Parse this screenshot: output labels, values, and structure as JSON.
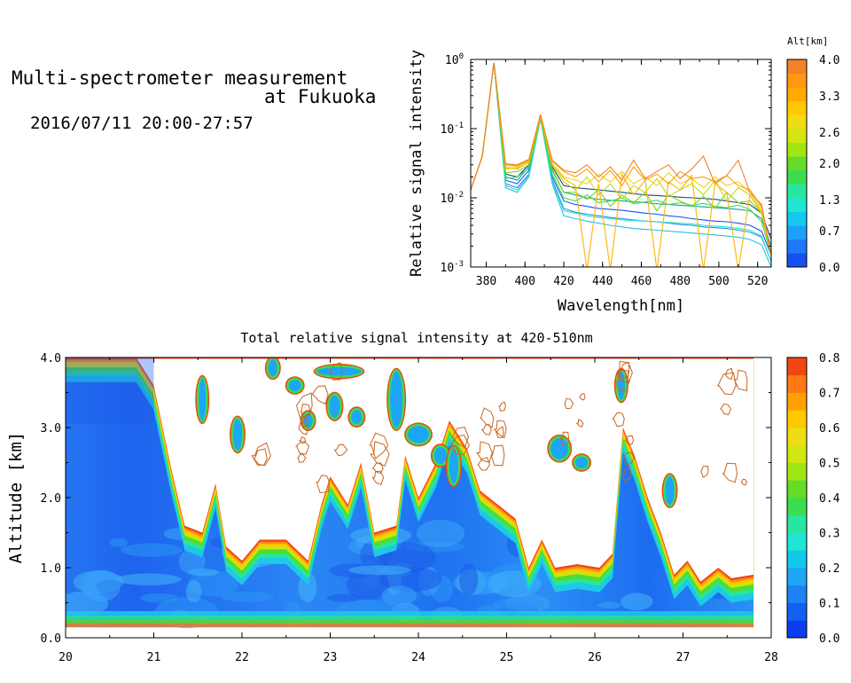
{
  "header": {
    "title_line1": "Multi-spectrometer measurement",
    "title_line2": "at Fukuoka",
    "datetime": "2016/07/11 20:00-27:57"
  },
  "chart_data": [
    {
      "type": "line",
      "ylabel": "Relative signal intensity",
      "xlabel": "Wavelength[nm]",
      "xlim": [
        372,
        527
      ],
      "ylim": [
        0.001,
        1
      ],
      "yscale": "log",
      "x_ticks": [
        380,
        400,
        420,
        440,
        460,
        480,
        500,
        520
      ],
      "y_ticks": [
        {
          "value": 1,
          "mantissa": "10",
          "exp": "0"
        },
        {
          "value": 0.1,
          "mantissa": "10",
          "exp": "-1"
        },
        {
          "value": 0.01,
          "mantissa": "10",
          "exp": "-2"
        },
        {
          "value": 0.001,
          "mantissa": "10",
          "exp": "-3"
        }
      ],
      "x": [
        372,
        378,
        384,
        390,
        396,
        402,
        408,
        414,
        420,
        426,
        432,
        438,
        444,
        450,
        456,
        462,
        468,
        474,
        480,
        486,
        492,
        498,
        504,
        510,
        516,
        522,
        527
      ],
      "series": [
        {
          "alt": 0.0,
          "color": "#1451ff",
          "values": [
            0.013,
            0.04,
            0.9,
            0.018,
            0.016,
            0.025,
            0.15,
            0.02,
            0.009,
            0.008,
            0.0075,
            0.007,
            0.0068,
            0.0066,
            0.0063,
            0.006,
            0.0058,
            0.0055,
            0.0053,
            0.005,
            0.0048,
            0.0046,
            0.0045,
            0.0043,
            0.004,
            0.0033,
            0.0015
          ]
        },
        {
          "alt": 0.35,
          "color": "#1e8cf0",
          "values": [
            0.013,
            0.04,
            0.9,
            0.016,
            0.014,
            0.022,
            0.14,
            0.018,
            0.007,
            0.0062,
            0.0058,
            0.0055,
            0.0052,
            0.005,
            0.0048,
            0.0046,
            0.0045,
            0.0043,
            0.0041,
            0.004,
            0.0038,
            0.0037,
            0.0036,
            0.0034,
            0.0032,
            0.0027,
            0.0012
          ]
        },
        {
          "alt": 0.7,
          "color": "#22c2e6",
          "values": [
            0.013,
            0.04,
            0.9,
            0.014,
            0.012,
            0.02,
            0.14,
            0.016,
            0.0055,
            0.005,
            0.0046,
            0.0043,
            0.004,
            0.0038,
            0.0036,
            0.0035,
            0.0034,
            0.0033,
            0.0032,
            0.0031,
            0.003,
            0.0029,
            0.0028,
            0.0027,
            0.0025,
            0.0021,
            0.001
          ]
        },
        {
          "alt": 1.0,
          "color": "#28e2c8",
          "values": [
            0.013,
            0.04,
            0.9,
            0.015,
            0.013,
            0.021,
            0.14,
            0.017,
            0.0065,
            0.006,
            0.0055,
            0.0052,
            0.005,
            0.0048,
            0.0047,
            0.0046,
            0.0045,
            0.0044,
            0.0043,
            0.0042,
            0.004,
            0.0039,
            0.0038,
            0.0036,
            0.0034,
            0.0028,
            0.0012
          ]
        },
        {
          "alt": 1.3,
          "color": "#14a0aa",
          "values": [
            0.013,
            0.04,
            0.9,
            0.02,
            0.018,
            0.028,
            0.15,
            0.025,
            0.012,
            0.011,
            0.01,
            0.0095,
            0.0092,
            0.009,
            0.0088,
            0.0085,
            0.0082,
            0.008,
            0.0078,
            0.0076,
            0.0074,
            0.0072,
            0.007,
            0.0068,
            0.0065,
            0.005,
            0.002
          ]
        },
        {
          "alt": 1.65,
          "color": "#1a4a8c",
          "values": [
            0.013,
            0.04,
            0.9,
            0.022,
            0.02,
            0.03,
            0.16,
            0.028,
            0.015,
            0.014,
            0.0135,
            0.013,
            0.0125,
            0.012,
            0.0115,
            0.011,
            0.0108,
            0.0105,
            0.0102,
            0.01,
            0.0098,
            0.0095,
            0.009,
            0.0085,
            0.008,
            0.006,
            0.0025
          ]
        },
        {
          "alt": 2.0,
          "color": "#3cdc50",
          "values": [
            0.013,
            0.04,
            0.9,
            0.019,
            0.02,
            0.027,
            0.14,
            0.022,
            0.01,
            0.009,
            0.011,
            0.0085,
            0.009,
            0.01,
            0.0082,
            0.0087,
            0.0092,
            0.008,
            0.0085,
            0.0078,
            0.0083,
            0.0075,
            0.0072,
            0.0078,
            0.0068,
            0.0045,
            0.0015
          ]
        },
        {
          "alt": 2.3,
          "color": "#7ad21e",
          "values": [
            0.013,
            0.04,
            0.9,
            0.023,
            0.024,
            0.03,
            0.15,
            0.026,
            0.012,
            0.012,
            0.0095,
            0.013,
            0.0075,
            0.011,
            0.0085,
            0.012,
            0.0065,
            0.011,
            0.009,
            0.0075,
            0.0105,
            0.007,
            0.012,
            0.0085,
            0.009,
            0.006,
            0.0015
          ]
        },
        {
          "alt": 2.6,
          "color": "#bedc14",
          "values": [
            0.013,
            0.04,
            0.9,
            0.026,
            0.027,
            0.032,
            0.15,
            0.03,
            0.017,
            0.013,
            0.02,
            0.011,
            0.016,
            0.0095,
            0.015,
            0.012,
            0.019,
            0.0105,
            0.013,
            0.016,
            0.011,
            0.018,
            0.009,
            0.014,
            0.011,
            0.0065,
            0.0015
          ]
        },
        {
          "alt": 3.0,
          "color": "#f0d214",
          "values": [
            0.013,
            0.04,
            0.9,
            0.028,
            0.028,
            0.034,
            0.15,
            0.032,
            0.02,
            0.018,
            0.016,
            0.022,
            0.017,
            0.024,
            0.016,
            0.02,
            0.015,
            0.023,
            0.016,
            0.019,
            0.014,
            0.02,
            0.015,
            0.017,
            0.012,
            0.007,
            0.0015
          ]
        },
        {
          "alt": 3.3,
          "color": "#ffb400",
          "values": [
            0.013,
            0.04,
            0.9,
            0.027,
            0.026,
            0.033,
            0.15,
            0.03,
            0.019,
            0.015,
            0.0009,
            0.016,
            0.0009,
            0.022,
            0.011,
            0.018,
            0.0009,
            0.017,
            0.013,
            0.021,
            0.0009,
            0.016,
            0.012,
            0.0009,
            0.011,
            0.006,
            0.0015
          ]
        },
        {
          "alt": 3.65,
          "color": "#ffa000",
          "values": [
            0.013,
            0.04,
            0.9,
            0.03,
            0.029,
            0.035,
            0.16,
            0.034,
            0.024,
            0.02,
            0.026,
            0.017,
            0.025,
            0.015,
            0.028,
            0.018,
            0.022,
            0.016,
            0.024,
            0.019,
            0.02,
            0.017,
            0.021,
            0.015,
            0.013,
            0.0075,
            0.0015
          ]
        },
        {
          "alt": 4.0,
          "color": "#f08228",
          "values": [
            0.013,
            0.04,
            0.9,
            0.031,
            0.03,
            0.036,
            0.16,
            0.035,
            0.025,
            0.023,
            0.03,
            0.02,
            0.028,
            0.018,
            0.035,
            0.019,
            0.024,
            0.03,
            0.019,
            0.026,
            0.04,
            0.016,
            0.021,
            0.035,
            0.012,
            0.008,
            0.0015
          ]
        }
      ],
      "colorbar": {
        "title": "Alt[km]",
        "ticks": [
          "4.0",
          "3.3",
          "2.6",
          "2.0",
          "1.3",
          "0.7",
          "0.0"
        ],
        "range": [
          0,
          4
        ],
        "colors": [
          "#1650f0",
          "#1e78f8",
          "#1ea0fa",
          "#14c8f0",
          "#1ee6d2",
          "#28e6a0",
          "#3cdc50",
          "#64dc28",
          "#a0e614",
          "#d2e614",
          "#f0dc14",
          "#ffc800",
          "#ffaa00",
          "#ff9614",
          "#f08228"
        ]
      }
    },
    {
      "type": "heatmap",
      "title": "Total relative signal intensity at 420-510nm",
      "ylabel": "Altitude [km]",
      "xlim": [
        20,
        28
      ],
      "ylim": [
        0,
        4
      ],
      "x_ticks": [
        "20",
        "21",
        "22",
        "23",
        "24",
        "25",
        "26",
        "27",
        "28"
      ],
      "y_ticks": [
        "0.0",
        "1.0",
        "2.0",
        "3.0",
        "4.0"
      ],
      "data_x_range": [
        20,
        27.8
      ],
      "data_y_range": [
        0.15,
        4.0
      ],
      "cloud_base_km": [
        {
          "t": 20.0,
          "alt": 4.0
        },
        {
          "t": 20.8,
          "alt": 4.0
        },
        {
          "t": 21.0,
          "alt": 3.6
        },
        {
          "t": 21.2,
          "alt": 2.4
        },
        {
          "t": 21.35,
          "alt": 1.6
        },
        {
          "t": 21.55,
          "alt": 1.5
        },
        {
          "t": 21.7,
          "alt": 2.2
        },
        {
          "t": 21.82,
          "alt": 1.3
        },
        {
          "t": 22.0,
          "alt": 1.1
        },
        {
          "t": 22.2,
          "alt": 1.4
        },
        {
          "t": 22.5,
          "alt": 1.4
        },
        {
          "t": 22.75,
          "alt": 1.1
        },
        {
          "t": 22.9,
          "alt": 1.9
        },
        {
          "t": 23.0,
          "alt": 2.3
        },
        {
          "t": 23.2,
          "alt": 1.9
        },
        {
          "t": 23.35,
          "alt": 2.5
        },
        {
          "t": 23.5,
          "alt": 1.5
        },
        {
          "t": 23.75,
          "alt": 1.6
        },
        {
          "t": 23.85,
          "alt": 2.6
        },
        {
          "t": 24.0,
          "alt": 2.0
        },
        {
          "t": 24.2,
          "alt": 2.5
        },
        {
          "t": 24.35,
          "alt": 3.1
        },
        {
          "t": 24.55,
          "alt": 2.7
        },
        {
          "t": 24.7,
          "alt": 2.1
        },
        {
          "t": 24.9,
          "alt": 1.9
        },
        {
          "t": 25.1,
          "alt": 1.7
        },
        {
          "t": 25.25,
          "alt": 1.0
        },
        {
          "t": 25.4,
          "alt": 1.4
        },
        {
          "t": 25.55,
          "alt": 1.0
        },
        {
          "t": 25.8,
          "alt": 1.05
        },
        {
          "t": 26.05,
          "alt": 1.0
        },
        {
          "t": 26.2,
          "alt": 1.2
        },
        {
          "t": 26.32,
          "alt": 3.0
        },
        {
          "t": 26.45,
          "alt": 2.6
        },
        {
          "t": 26.6,
          "alt": 2.0
        },
        {
          "t": 26.75,
          "alt": 1.5
        },
        {
          "t": 26.9,
          "alt": 0.9
        },
        {
          "t": 27.05,
          "alt": 1.1
        },
        {
          "t": 27.2,
          "alt": 0.8
        },
        {
          "t": 27.4,
          "alt": 1.0
        },
        {
          "t": 27.55,
          "alt": 0.85
        },
        {
          "t": 27.8,
          "alt": 0.9
        }
      ],
      "colorbar": {
        "ticks": [
          "0.8",
          "0.7",
          "0.6",
          "0.5",
          "0.4",
          "0.3",
          "0.2",
          "0.1",
          "0.0"
        ],
        "range": [
          0,
          0.8
        ],
        "colors": [
          "#0a3cf0",
          "#1460f0",
          "#1e82f5",
          "#1ea5f5",
          "#14c8eb",
          "#1ee6d2",
          "#28e6a0",
          "#3cdc50",
          "#64dc28",
          "#a0e614",
          "#d2e614",
          "#f0dc14",
          "#ffc800",
          "#ffa000",
          "#ff7814",
          "#f04614"
        ]
      }
    }
  ]
}
